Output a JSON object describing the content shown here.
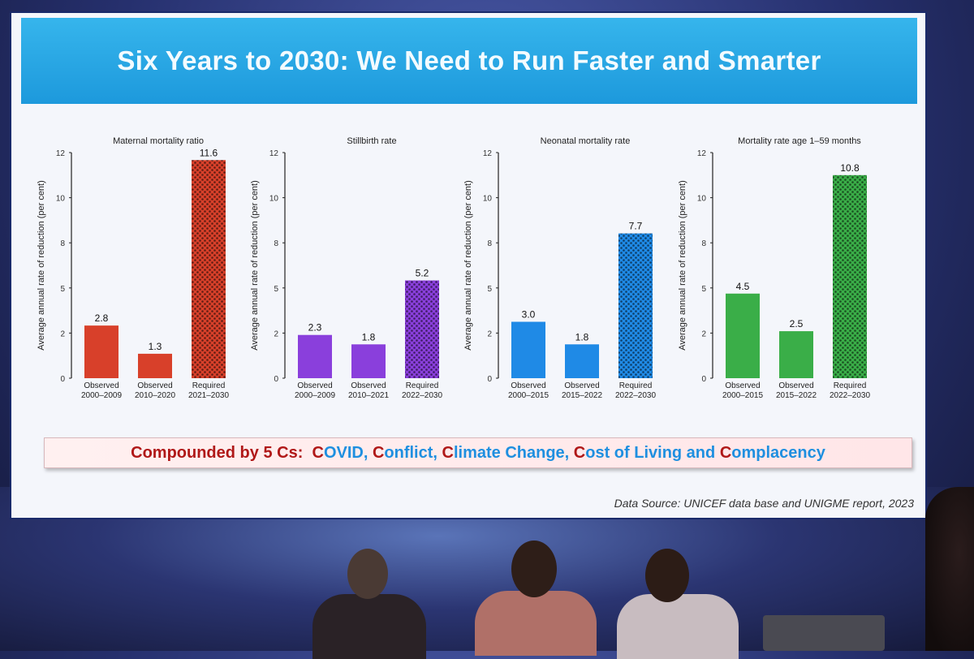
{
  "slide": {
    "title": "Six Years to 2030: We Need to Run Faster and Smarter",
    "compounded": {
      "prefix": "Compounded by 5 Cs:",
      "items": [
        {
          "initial": "C",
          "rest": "OVID,"
        },
        {
          "initial": "C",
          "rest": "onflict,"
        },
        {
          "initial": "C",
          "rest": "limate Change,"
        },
        {
          "initial": "C",
          "rest": "ost of Living and"
        },
        {
          "initial": "C",
          "rest": "omplacency"
        }
      ],
      "colors": {
        "initial": "#b01818",
        "rest": "#1e8fe0",
        "prefix": "#b01818"
      }
    },
    "source": "Data Source: UNICEF data base and UNIGME report, 2023"
  },
  "chart_data": [
    {
      "type": "bar",
      "title": "Maternal mortality ratio",
      "ylabel": "Average annual rate of reduction (per cent)",
      "yticks": [
        "0",
        "2",
        "5",
        "8",
        "10",
        "12"
      ],
      "ylim": [
        0,
        12
      ],
      "categories": [
        [
          "Observed",
          "2000–2009"
        ],
        [
          "Observed",
          "2010–2020"
        ],
        [
          "Required",
          "2021–2030"
        ]
      ],
      "values": [
        2.8,
        1.3,
        11.6
      ],
      "labels": [
        "2.8",
        "1.3",
        "11.6"
      ],
      "color": "#d8402a",
      "patterned": [
        false,
        false,
        true
      ]
    },
    {
      "type": "bar",
      "title": "Stillbirth rate",
      "ylabel": "Average annual rate of reduction (per cent)",
      "yticks": [
        "0",
        "2",
        "5",
        "8",
        "10",
        "12"
      ],
      "ylim": [
        0,
        12
      ],
      "categories": [
        [
          "Observed",
          "2000–2009"
        ],
        [
          "Observed",
          "2010–2021"
        ],
        [
          "Required",
          "2022–2030"
        ]
      ],
      "values": [
        2.3,
        1.8,
        5.2
      ],
      "labels": [
        "2.3",
        "1.8",
        "5.2"
      ],
      "color": "#8a3fdc",
      "patterned": [
        false,
        false,
        true
      ]
    },
    {
      "type": "bar",
      "title": "Neonatal mortality rate",
      "ylabel": "Average annual rate of reduction (per cent)",
      "yticks": [
        "0",
        "2",
        "5",
        "8",
        "10",
        "12"
      ],
      "ylim": [
        0,
        12
      ],
      "categories": [
        [
          "Observed",
          "2000–2015"
        ],
        [
          "Observed",
          "2015–2022"
        ],
        [
          "Required",
          "2022–2030"
        ]
      ],
      "values": [
        3.0,
        1.8,
        7.7
      ],
      "labels": [
        "3.0",
        "1.8",
        "7.7"
      ],
      "color": "#1f8ae6",
      "patterned": [
        false,
        false,
        true
      ]
    },
    {
      "type": "bar",
      "title": "Mortality rate age 1–59 months",
      "ylabel": "Average annual rate of reduction (per cent)",
      "yticks": [
        "0",
        "2",
        "5",
        "8",
        "10",
        "12"
      ],
      "ylim": [
        0,
        12
      ],
      "categories": [
        [
          "Observed",
          "2000–2015"
        ],
        [
          "Observed",
          "2015–2022"
        ],
        [
          "Required",
          "2022–2030"
        ]
      ],
      "values": [
        4.5,
        2.5,
        10.8
      ],
      "labels": [
        "4.5",
        "2.5",
        "10.8"
      ],
      "color": "#3aae48",
      "patterned": [
        false,
        false,
        true
      ]
    }
  ]
}
